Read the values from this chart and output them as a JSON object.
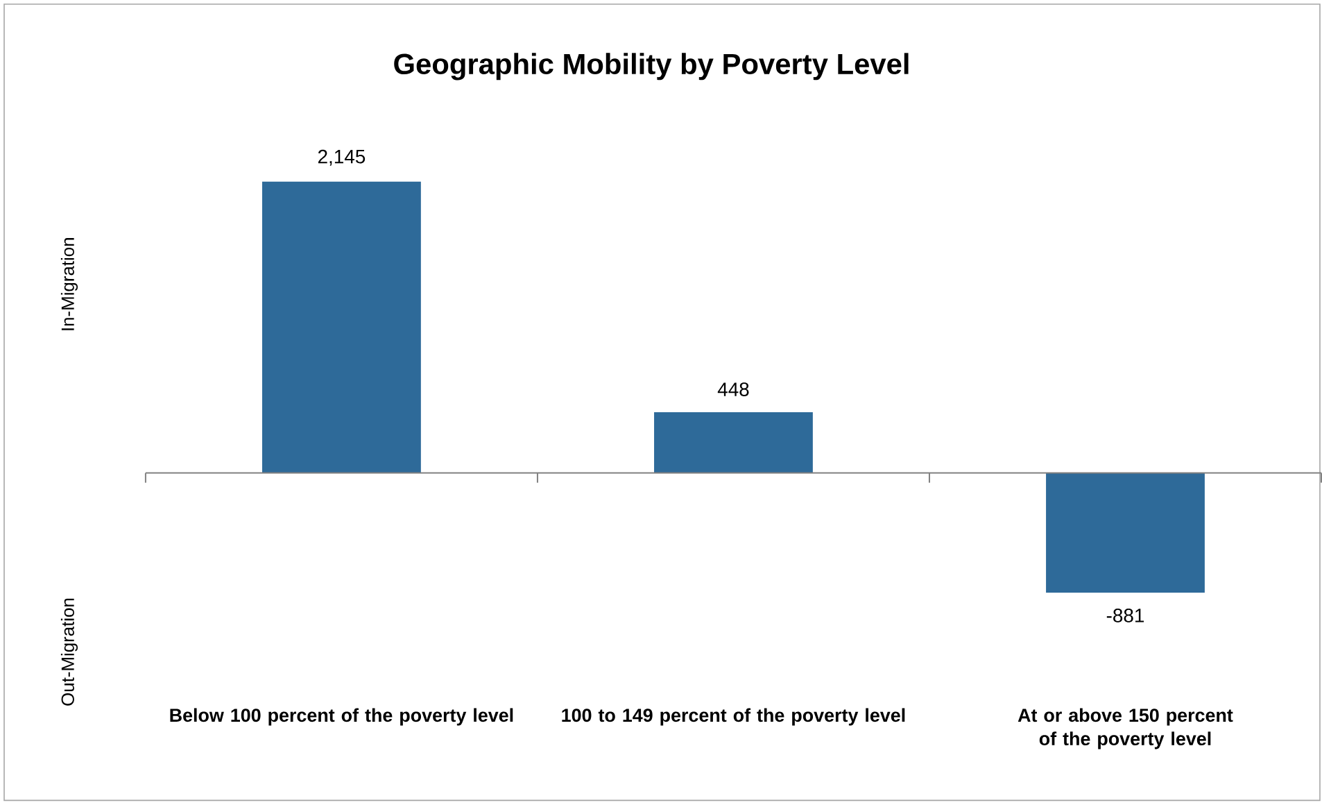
{
  "chart_data": {
    "type": "bar",
    "title": "Geographic Mobility by Poverty Level",
    "ylabel": "In-Migration",
    "annotations": [
      "Out-Migration"
    ],
    "categories": [
      "Below 100 percent of the poverty level",
      "100 to 149 percent of the poverty level",
      "At or above 150 percent of the poverty level"
    ],
    "values": [
      2145,
      448,
      -881
    ],
    "value_labels": [
      "2,145",
      "448",
      "-881"
    ],
    "color": "#2e6a99"
  }
}
